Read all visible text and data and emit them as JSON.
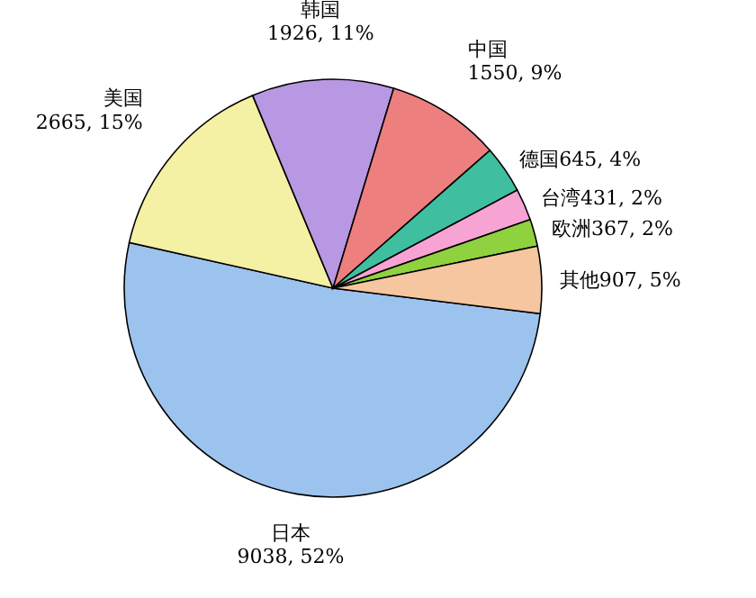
{
  "chart_data": {
    "type": "pie",
    "categories": [
      "日本",
      "美国",
      "韩国",
      "中国",
      "德国",
      "台湾",
      "欧洲",
      "其他"
    ],
    "values": [
      9038,
      2665,
      1926,
      1550,
      645,
      431,
      367,
      907
    ],
    "value_labels": [
      "9038, 52%",
      "2665, 15%",
      "1926, 11%",
      "1550, 9%",
      "645, 4%",
      "431, 2%",
      "367, 2%",
      "907, 5%"
    ],
    "colors": [
      "#9cc3ee",
      "#f4f0a4",
      "#b898e2",
      "#ee7f7f",
      "#3fbf9f",
      "#f7a3d3",
      "#8fd13f",
      "#f6c6a0"
    ],
    "legend": false
  }
}
